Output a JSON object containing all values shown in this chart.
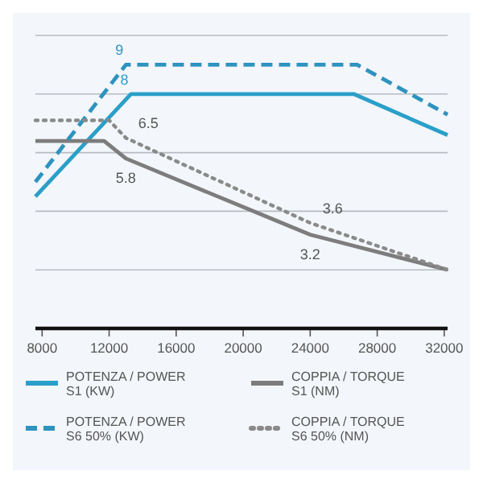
{
  "chart_data": {
    "type": "line",
    "xlim": [
      7600,
      32200
    ],
    "xticks": [
      8000,
      12000,
      16000,
      20000,
      24000,
      28000,
      32000
    ],
    "ylim": [
      0,
      10
    ],
    "yticks": [
      {
        "value": 0,
        "label": null
      },
      {
        "value": 2,
        "label": null
      },
      {
        "value": 4,
        "label": null
      },
      {
        "value": 6,
        "label": null
      },
      {
        "value": 8,
        "label": null
      },
      {
        "value": 10,
        "label": null
      }
    ],
    "tick_labels": "x",
    "grid": "y",
    "legend": "bottom",
    "marker": "none",
    "series": [
      {
        "name": "POTENZA / POWER S1 (KW)",
        "color": "#2a9fc9",
        "line_style": "solid",
        "x": [
          7600,
          13300,
          26600,
          32200
        ],
        "values": [
          4.5,
          8,
          8,
          6.6
        ],
        "value_labels": [
          null,
          "8",
          null,
          null
        ]
      },
      {
        "name": "COPPIA / TORQUE S1 (NM)",
        "color": "#7d7d7d",
        "line_style": "solid",
        "x": [
          7600,
          11700,
          13000,
          24000,
          32200
        ],
        "values": [
          6.4,
          6.4,
          5.8,
          3.2,
          2.0
        ],
        "value_labels": [
          null,
          null,
          "5.8",
          "3.2",
          null
        ]
      },
      {
        "name": "POTENZA / POWER S6 50% (KW)",
        "color": "#2e93bf",
        "line_style": "dashed",
        "x": [
          7600,
          13000,
          26800,
          32200
        ],
        "values": [
          5.0,
          9,
          9,
          7.3
        ],
        "value_labels": [
          null,
          "9",
          null,
          null
        ]
      },
      {
        "name": "COPPIA / TORQUE S6 50% (NM)",
        "color": "#8a8a8a",
        "line_style": "dotted",
        "x": [
          7600,
          12000,
          13000,
          24000,
          32200
        ],
        "values": [
          7.1,
          7.1,
          6.5,
          3.6,
          2.0
        ],
        "value_labels": [
          null,
          null,
          "6.5",
          "3.6",
          null
        ]
      }
    ]
  }
}
